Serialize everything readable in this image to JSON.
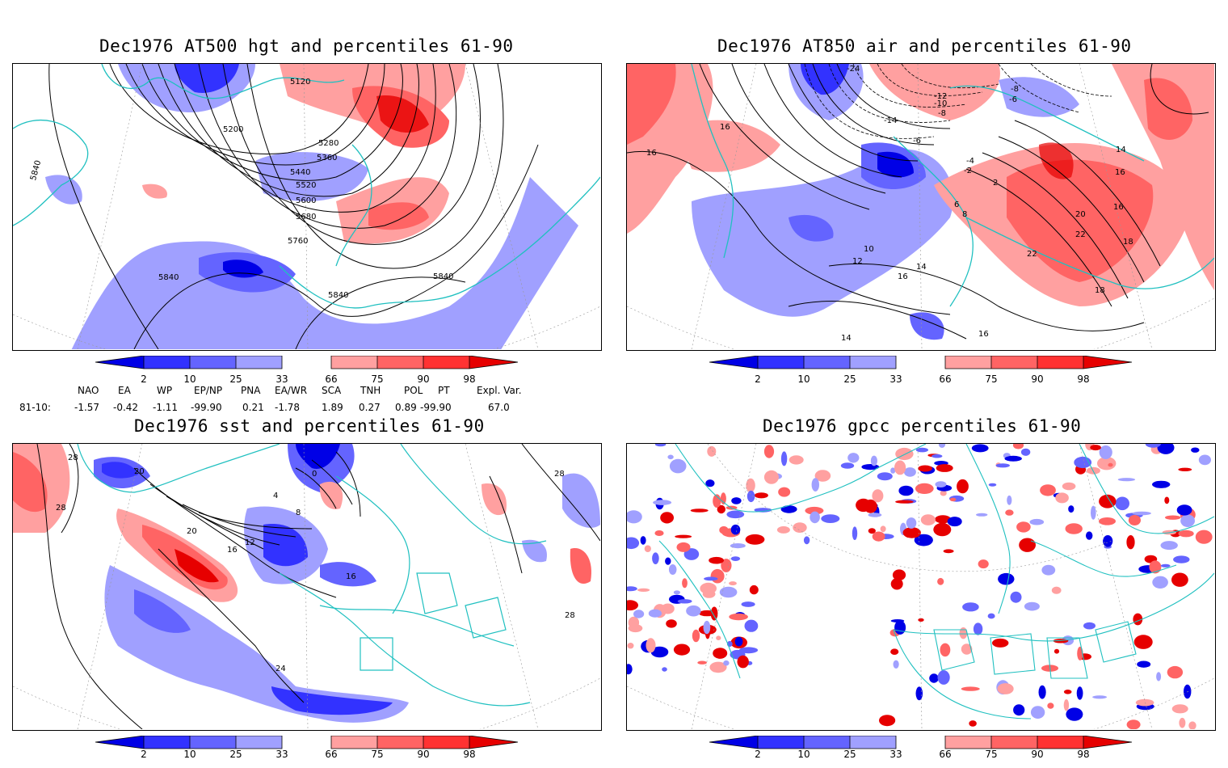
{
  "panels": [
    {
      "title": "Dec1976 AT500 hgt and percentiles 61-90",
      "contour_labels": [
        "5120",
        "5200",
        "5280",
        "5360",
        "5440",
        "5520",
        "5600",
        "5680",
        "5760",
        "5840",
        "5840",
        "5840",
        "5840"
      ]
    },
    {
      "title": "Dec1976 AT850 air and percentiles 61-90",
      "contour_labels": [
        "-24",
        "-12",
        "-10",
        "-8",
        "-8",
        "-6",
        "-14",
        "16",
        "16",
        "14",
        "16",
        "16",
        "-6",
        "-4",
        "-2",
        "2",
        "6",
        "8",
        "10",
        "12",
        "14",
        "16",
        "18",
        "20",
        "22",
        "22",
        "14",
        "16",
        "18"
      ]
    },
    {
      "title": "Dec1976 sst and percentiles 61-90",
      "contour_labels": [
        "28",
        "28",
        "28",
        "20",
        "0",
        "4",
        "8",
        "12",
        "16",
        "20",
        "24",
        "28",
        "16"
      ]
    },
    {
      "title": "Dec1976 gpcc percentiles 61-90",
      "contour_labels": []
    }
  ],
  "colorbar": {
    "labels": [
      "2",
      "10",
      "25",
      "33",
      "66",
      "75",
      "90",
      "98"
    ],
    "colors": {
      "below_2": "#0000e6",
      "p2_10": "#3232ff",
      "p10_25": "#6464ff",
      "p25_33": "#a0a0ff",
      "p66_75": "#ffa0a0",
      "p75_90": "#ff6464",
      "p90_98": "#ff3232",
      "above_98": "#e60000"
    }
  },
  "indices": {
    "header": [
      "NAO",
      "EA",
      "WP",
      "EP/NP",
      "PNA",
      "EA/WR",
      "SCA",
      "TNH",
      "POL",
      "PT",
      "Expl. Var."
    ],
    "row_label": "81-10:",
    "values": [
      "-1.57",
      "-0.42",
      "-1.11",
      "-99.90",
      "0.21",
      "-1.78",
      "1.89",
      "0.27",
      "0.89",
      "-99.90",
      "67.0"
    ]
  },
  "map_colors": {
    "coast": "#20c0c0",
    "blue_light": "#a0a0ff",
    "blue_mid": "#6464ff",
    "blue_dark": "#0000e6",
    "red_light": "#ffa0a0",
    "red_mid": "#ff6464",
    "red_dark": "#e60000"
  }
}
